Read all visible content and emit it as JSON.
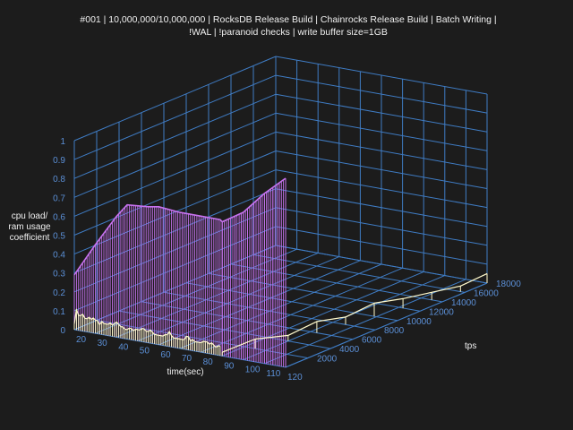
{
  "title_line1": "#001 | 10,000,000/10,000,000 | RocksDB Release Build | Chainrocks Release Build | Batch Writing |",
  "title_line2": "!WAL | !paranoid checks | write buffer size=1GB",
  "chart_data": {
    "type": "line",
    "projection": "3d",
    "title": "#001 | 10,000,000/10,000,000 | RocksDB Release Build | Chainrocks Release Build | Batch Writing | !WAL | !paranoid checks | write buffer size=1GB",
    "xlabel": "time(sec)",
    "ylabel": "tps",
    "zlabel": "cpu load/ ram usage coefficient",
    "xlabel_lines": [
      "time(sec)"
    ],
    "zlabel_lines": [
      "cpu load/",
      "ram usage",
      "coefficient"
    ],
    "xlim": [
      20,
      120
    ],
    "ylim": [
      0,
      18000
    ],
    "zlim": [
      0,
      1
    ],
    "x_ticks": [
      20,
      30,
      40,
      50,
      60,
      70,
      80,
      90,
      100,
      110,
      120
    ],
    "y_ticks": [
      2000,
      4000,
      6000,
      8000,
      10000,
      12000,
      14000,
      16000,
      18000
    ],
    "z_ticks": [
      0,
      0.1,
      0.2,
      0.3,
      0.4,
      0.5,
      0.6,
      0.7,
      0.8,
      0.9,
      1
    ],
    "grid": true,
    "colors": {
      "background": "#1c1c1c",
      "grid": "#3f7cc4",
      "ticks": "#5b8fd6",
      "ram": "#c873f0",
      "tps": "#fffacd"
    },
    "series": [
      {
        "role": "ram",
        "x": [
          20,
          30,
          40,
          45,
          55,
          60,
          70,
          80,
          89,
          90,
          100,
          110,
          120
        ],
        "y": [
          0,
          0,
          0,
          0,
          0,
          0,
          0,
          0,
          0,
          0,
          0,
          0,
          0
        ],
        "z": [
          0.29,
          0.47,
          0.64,
          0.71,
          0.72,
          0.73,
          0.72,
          0.72,
          0.72,
          0.71,
          0.78,
          0.9,
          1.0
        ]
      },
      {
        "role": "cpu",
        "x": [
          20,
          21,
          22,
          23,
          24,
          25,
          26,
          27,
          28,
          29,
          30,
          31,
          32,
          33,
          34,
          35,
          36,
          37,
          38,
          39,
          40,
          41,
          42,
          43,
          44,
          45,
          46,
          47,
          48,
          49,
          50,
          51,
          52,
          53,
          54,
          55,
          56,
          57,
          58,
          59,
          60,
          61,
          62,
          63,
          64,
          65,
          66,
          67,
          68,
          69,
          70,
          71,
          72,
          73,
          74,
          75,
          76,
          77,
          78,
          79,
          80,
          81,
          82,
          83,
          84,
          85,
          86,
          87,
          88,
          89
        ],
        "y": [
          0,
          0,
          0,
          0,
          0,
          0,
          0,
          0,
          0,
          0,
          0,
          0,
          0,
          0,
          0,
          0,
          0,
          0,
          0,
          0,
          0,
          0,
          0,
          0,
          0,
          0,
          0,
          0,
          0,
          0,
          0,
          0,
          0,
          0,
          0,
          0,
          0,
          0,
          0,
          0,
          0,
          0,
          0,
          0,
          0,
          0,
          0,
          0,
          0,
          0,
          0,
          0,
          0,
          0,
          0,
          0,
          0,
          0,
          0,
          0,
          0,
          0,
          0,
          0,
          0,
          0,
          0,
          0,
          0,
          0
        ],
        "z": [
          0.03,
          0.11,
          0.08,
          0.08,
          0.09,
          0.07,
          0.07,
          0.08,
          0.07,
          0.08,
          0.07,
          0.07,
          0.05,
          0.07,
          0.06,
          0.06,
          0.06,
          0.07,
          0.06,
          0.07,
          0.08,
          0.07,
          0.06,
          0.06,
          0.05,
          0.05,
          0.06,
          0.06,
          0.05,
          0.06,
          0.06,
          0.06,
          0.07,
          0.07,
          0.06,
          0.06,
          0.07,
          0.06,
          0.05,
          0.05,
          0.05,
          0.05,
          0.05,
          0.06,
          0.06,
          0.08,
          0.06,
          0.05,
          0.05,
          0.05,
          0.05,
          0.05,
          0.05,
          0.07,
          0.07,
          0.05,
          0.06,
          0.05,
          0.05,
          0.05,
          0.05,
          0.06,
          0.06,
          0.06,
          0.05,
          0.06,
          0.05,
          0.04,
          0.05,
          0.05
        ]
      },
      {
        "role": "tps",
        "x": [
          90,
          95,
          100,
          103,
          106,
          109,
          112,
          115,
          118,
          120
        ],
        "y": [
          0,
          2000,
          4000,
          6000,
          8000,
          10000,
          12000,
          14000,
          16000,
          18000
        ],
        "z": [
          0.02,
          0.05,
          0.03,
          0.06,
          0.04,
          0.07,
          0.05,
          0.04,
          0.03,
          0.05
        ]
      }
    ]
  }
}
